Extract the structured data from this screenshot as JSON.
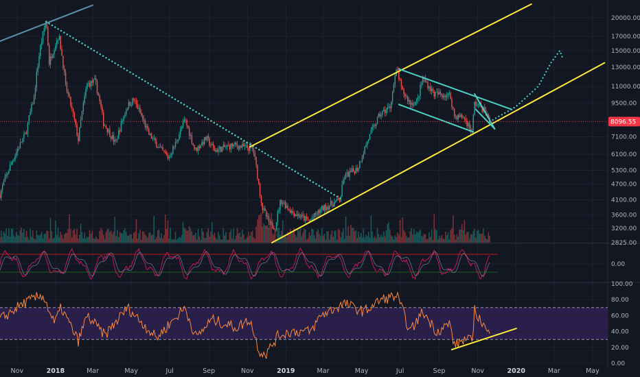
{
  "colors": {
    "background": "#131722",
    "axis_text": "#b2b5be",
    "up": "#26a69a",
    "down": "#ef5350",
    "trend_yellow": "#ffeb3b",
    "trend_teal": "#4dd0c4",
    "trend_bluegrey": "#5b8fa8",
    "current_price_badge": "#f23645",
    "rsi_line": "#ff8a3d",
    "rsi_band": "#2a1f4a",
    "macd_line": "#c2185b"
  },
  "current_price": {
    "label": "8096.55",
    "value": 8096.55
  },
  "chart_data": [
    {
      "type": "candlestick",
      "panel": "price",
      "scale": "log",
      "ylim": [
        2825,
        22500
      ],
      "y_ticks": [
        "20000.00",
        "17000.00",
        "15000.00",
        "13000.00",
        "11000.00",
        "9500.00",
        "8096.55",
        "7100.00",
        "6100.00",
        "5300.00",
        "4700.00",
        "4100.00",
        "3600.00",
        "3200.00",
        "2825.00"
      ],
      "y_tick_values": [
        20000,
        17000,
        15000,
        13000,
        11000,
        9500,
        7100,
        6100,
        5300,
        4700,
        4100,
        3600,
        3200,
        2825
      ],
      "x_ticks": [
        "Nov",
        "2018",
        "Mar",
        "May",
        "Jul",
        "Sep",
        "Nov",
        "2019",
        "Mar",
        "May",
        "Jul",
        "Sep",
        "Nov",
        "2020",
        "Mar",
        "May"
      ],
      "x_tick_bold": [
        false,
        true,
        false,
        false,
        false,
        false,
        false,
        true,
        false,
        false,
        false,
        false,
        false,
        true,
        false,
        false
      ],
      "x_tick_dates": [
        "2017-11-01",
        "2018-01-01",
        "2018-03-01",
        "2018-05-01",
        "2018-07-01",
        "2018-09-01",
        "2018-11-01",
        "2019-01-01",
        "2019-03-01",
        "2019-05-01",
        "2019-07-01",
        "2019-09-01",
        "2019-11-01",
        "2020-01-01",
        "2020-03-01",
        "2020-05-01"
      ],
      "x_range": [
        "2017-10-05",
        "2020-05-25"
      ],
      "price_path": [
        [
          "2017-10-05",
          4300
        ],
        [
          "2017-10-25",
          5800
        ],
        [
          "2017-11-15",
          7300
        ],
        [
          "2017-11-28",
          10000
        ],
        [
          "2017-12-08",
          15500
        ],
        [
          "2017-12-17",
          19500
        ],
        [
          "2017-12-22",
          13500
        ],
        [
          "2018-01-06",
          17200
        ],
        [
          "2018-01-17",
          11000
        ],
        [
          "2018-02-06",
          6900
        ],
        [
          "2018-02-20",
          11200
        ],
        [
          "2018-03-05",
          11500
        ],
        [
          "2018-03-18",
          8000
        ],
        [
          "2018-04-06",
          6700
        ],
        [
          "2018-04-25",
          9300
        ],
        [
          "2018-05-05",
          9800
        ],
        [
          "2018-05-28",
          7300
        ],
        [
          "2018-06-15",
          6400
        ],
        [
          "2018-06-29",
          5900
        ],
        [
          "2018-07-10",
          6700
        ],
        [
          "2018-07-25",
          8200
        ],
        [
          "2018-08-10",
          6300
        ],
        [
          "2018-08-28",
          7000
        ],
        [
          "2018-09-10",
          6300
        ],
        [
          "2018-10-10",
          6600
        ],
        [
          "2018-11-10",
          6400
        ],
        [
          "2018-11-20",
          4500
        ],
        [
          "2018-11-25",
          3800
        ],
        [
          "2018-12-07",
          3300
        ],
        [
          "2018-12-15",
          3250
        ],
        [
          "2018-12-24",
          4100
        ],
        [
          "2019-01-10",
          3700
        ],
        [
          "2019-02-07",
          3400
        ],
        [
          "2019-02-28",
          3800
        ],
        [
          "2019-03-28",
          4100
        ],
        [
          "2019-04-03",
          5000
        ],
        [
          "2019-04-25",
          5400
        ],
        [
          "2019-05-11",
          6900
        ],
        [
          "2019-05-30",
          8600
        ],
        [
          "2019-06-15",
          9200
        ],
        [
          "2019-06-26",
          12800
        ],
        [
          "2019-07-03",
          10700
        ],
        [
          "2019-07-17",
          9500
        ],
        [
          "2019-07-28",
          9600
        ],
        [
          "2019-08-06",
          11800
        ],
        [
          "2019-08-24",
          10300
        ],
        [
          "2019-09-18",
          10200
        ],
        [
          "2019-09-25",
          8500
        ],
        [
          "2019-10-10",
          8400
        ],
        [
          "2019-10-23",
          7400
        ],
        [
          "2019-10-27",
          9500
        ],
        [
          "2019-11-05",
          9300
        ],
        [
          "2019-11-14",
          8700
        ],
        [
          "2019-11-20",
          8096.55
        ]
      ],
      "projection_path": [
        [
          "2019-12-31",
          9200
        ],
        [
          "2020-02-05",
          11000
        ],
        [
          "2020-02-25",
          13500
        ],
        [
          "2020-03-10",
          15000
        ],
        [
          "2020-03-14",
          14200
        ]
      ],
      "trendlines": [
        {
          "name": "all-time-high-ray",
          "color": "bluegrey",
          "style": "solid",
          "points": [
            [
              "2017-10-05",
              16300
            ],
            [
              "2018-03-01",
              22300
            ]
          ]
        },
        {
          "name": "downtrend-dotted",
          "color": "teal",
          "style": "dotted",
          "points": [
            [
              "2017-12-17",
              19300
            ],
            [
              "2019-03-28",
              4150
            ]
          ]
        },
        {
          "name": "channel-upper",
          "color": "yellow",
          "style": "solid",
          "points": [
            [
              "2018-11-05",
              6500
            ],
            [
              "2020-01-25",
              22500
            ]
          ]
        },
        {
          "name": "channel-lower",
          "color": "yellow",
          "style": "solid",
          "points": [
            [
              "2018-12-10",
              2825
            ],
            [
              "2020-05-20",
              13500
            ]
          ]
        },
        {
          "name": "flag-upper",
          "color": "teal",
          "style": "solid",
          "points": [
            [
              "2019-06-29",
              12800
            ],
            [
              "2019-12-25",
              9000
            ]
          ]
        },
        {
          "name": "flag-lower",
          "color": "teal",
          "style": "solid",
          "points": [
            [
              "2019-06-29",
              9400
            ],
            [
              "2019-10-25",
              7400
            ]
          ]
        },
        {
          "name": "wedge-upper",
          "color": "teal",
          "style": "solid",
          "points": [
            [
              "2019-10-27",
              10300
            ],
            [
              "2019-11-28",
              7600
            ]
          ]
        },
        {
          "name": "wedge-lower",
          "color": "teal",
          "style": "solid",
          "points": [
            [
              "2019-10-29",
              9000
            ],
            [
              "2019-11-28",
              7600
            ]
          ]
        }
      ]
    },
    {
      "type": "line",
      "panel": "oscillator",
      "y_ticks": [
        "0.00"
      ],
      "zero_value": 0,
      "reference_levels": [
        -0.5,
        0.5
      ]
    },
    {
      "type": "line",
      "panel": "rsi",
      "ylim": [
        0,
        100
      ],
      "y_ticks": [
        "100.00",
        "80.00",
        "60.00",
        "40.00",
        "20.00",
        "0.00"
      ],
      "y_tick_values": [
        100,
        80,
        60,
        40,
        20,
        0
      ],
      "band": [
        30,
        70
      ],
      "support_line": [
        [
          "2019-09-20",
          17
        ],
        [
          "2020-01-02",
          44
        ]
      ],
      "rsi_path": [
        [
          "2017-10-05",
          55
        ],
        [
          "2017-11-10",
          75
        ],
        [
          "2017-12-12",
          86
        ],
        [
          "2017-12-30",
          50
        ],
        [
          "2018-01-10",
          70
        ],
        [
          "2018-02-06",
          28
        ],
        [
          "2018-02-20",
          60
        ],
        [
          "2018-03-20",
          35
        ],
        [
          "2018-04-25",
          70
        ],
        [
          "2018-06-10",
          32
        ],
        [
          "2018-07-25",
          70
        ],
        [
          "2018-08-12",
          32
        ],
        [
          "2018-09-05",
          55
        ],
        [
          "2018-10-15",
          45
        ],
        [
          "2018-11-05",
          55
        ],
        [
          "2018-11-20",
          15
        ],
        [
          "2018-12-01",
          12
        ],
        [
          "2018-12-20",
          35
        ],
        [
          "2019-01-10",
          40
        ],
        [
          "2019-02-10",
          40
        ],
        [
          "2019-02-25",
          60
        ],
        [
          "2019-04-03",
          75
        ],
        [
          "2019-05-05",
          65
        ],
        [
          "2019-06-01",
          80
        ],
        [
          "2019-06-26",
          85
        ],
        [
          "2019-07-17",
          40
        ],
        [
          "2019-08-06",
          65
        ],
        [
          "2019-08-28",
          40
        ],
        [
          "2019-09-18",
          50
        ],
        [
          "2019-09-25",
          22
        ],
        [
          "2019-10-10",
          30
        ],
        [
          "2019-10-23",
          28
        ],
        [
          "2019-10-27",
          67
        ],
        [
          "2019-11-05",
          55
        ],
        [
          "2019-11-20",
          34
        ]
      ]
    }
  ]
}
